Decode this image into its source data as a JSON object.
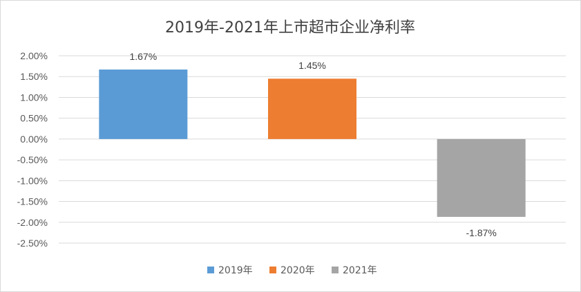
{
  "chart_data": {
    "type": "bar",
    "title": "2019年-2021年上市超市企业净利率",
    "categories": [
      "2019年",
      "2020年",
      "2021年"
    ],
    "series": [
      {
        "name": "2019年",
        "value": 1.67,
        "label": "1.67%",
        "color": "#5b9bd5"
      },
      {
        "name": "2020年",
        "value": 1.45,
        "label": "1.45%",
        "color": "#ed7d31"
      },
      {
        "name": "2021年",
        "value": -1.87,
        "label": "-1.87%",
        "color": "#a5a5a5"
      }
    ],
    "yticks": [
      "2.00%",
      "1.50%",
      "1.00%",
      "0.50%",
      "0.00%",
      "-0.50%",
      "-1.00%",
      "-1.50%",
      "-2.00%",
      "-2.50%"
    ],
    "ylim": [
      -2.5,
      2.0
    ],
    "grid": true,
    "legend_position": "bottom"
  }
}
